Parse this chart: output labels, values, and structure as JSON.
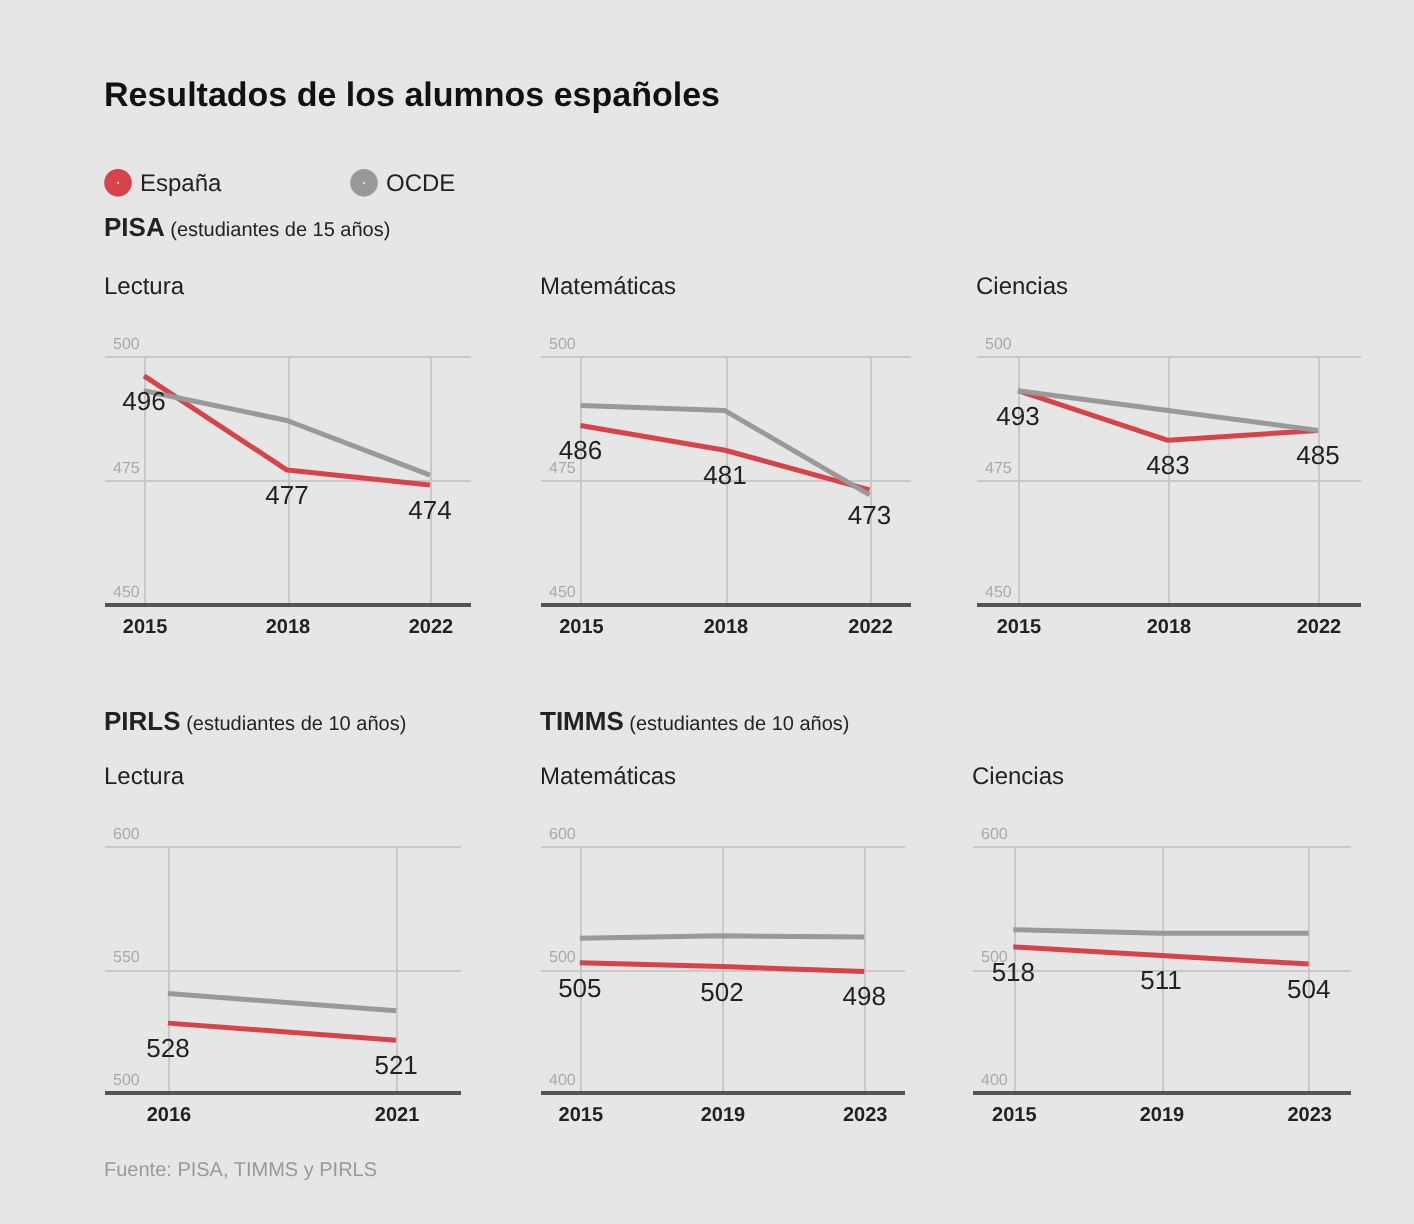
{
  "chart_data": [
    {
      "type": "other",
      "title": "Resultados de los alumnos españoles"
    },
    {
      "type": "line",
      "title": "Lectura",
      "subtitle": "PISA (estudiantes de 15 años)",
      "categories": [
        "2015",
        "2018",
        "2022"
      ],
      "ylim": [
        450,
        500
      ],
      "yticks": [
        450,
        475,
        500
      ],
      "grid": true,
      "legend": "top left",
      "series": [
        {
          "name": "España",
          "color": "#d8434b",
          "values": [
            496,
            477,
            474
          ],
          "value_labels": [
            "496",
            "477",
            "474"
          ]
        },
        {
          "name": "OCDE",
          "color": "#999999",
          "values": [
            493,
            487,
            476
          ]
        }
      ]
    },
    {
      "type": "line",
      "title": "Matemáticas",
      "categories": [
        "2015",
        "2018",
        "2022"
      ],
      "ylim": [
        450,
        500
      ],
      "yticks": [
        450,
        475,
        500
      ],
      "grid": true,
      "series": [
        {
          "color": "#d8434b",
          "values": [
            486,
            481,
            473
          ],
          "value_labels": [
            "486",
            "481",
            "473"
          ]
        },
        {
          "color": "#999999",
          "values": [
            490,
            489,
            472
          ]
        }
      ]
    },
    {
      "type": "line",
      "title": "Ciencias",
      "categories": [
        "2015",
        "2018",
        "2022"
      ],
      "ylim": [
        450,
        500
      ],
      "yticks": [
        450,
        475,
        500
      ],
      "grid": true,
      "series": [
        {
          "color": "#d8434b",
          "values": [
            493,
            483,
            485
          ],
          "value_labels": [
            "493",
            "483",
            "485"
          ]
        },
        {
          "color": "#999999",
          "values": [
            493,
            489,
            485
          ]
        }
      ]
    },
    {
      "type": "line",
      "title": "Lectura",
      "subtitle": "PIRLS (estudiantes de 10 años)",
      "categories": [
        "2016",
        "2021"
      ],
      "ylim": [
        500,
        600
      ],
      "yticks": [
        500,
        550,
        600
      ],
      "grid": true,
      "annotations": [
        "Fuente: PISA, TIMMS y PIRLS"
      ],
      "series": [
        {
          "color": "#d8434b",
          "values": [
            528,
            521
          ],
          "value_labels": [
            "528",
            "521"
          ]
        },
        {
          "color": "#999999",
          "values": [
            540,
            533
          ]
        }
      ]
    },
    {
      "type": "line",
      "title": "Matemáticas",
      "subtitle": "TIMMS (estudiantes de 10 años)",
      "categories": [
        "2015",
        "2019",
        "2023"
      ],
      "ylim": [
        400,
        600
      ],
      "yticks": [
        400,
        500,
        600
      ],
      "grid": true,
      "series": [
        {
          "color": "#d8434b",
          "values": [
            505,
            502,
            498
          ],
          "value_labels": [
            "505",
            "502",
            "498"
          ]
        },
        {
          "color": "#999999",
          "values": [
            525,
            527,
            526
          ]
        }
      ]
    },
    {
      "type": "line",
      "title": "Ciencias",
      "categories": [
        "2015",
        "2019",
        "2023"
      ],
      "ylim": [
        400,
        600
      ],
      "yticks": [
        400,
        500,
        600
      ],
      "grid": true,
      "series": [
        {
          "color": "#d8434b",
          "values": [
            518,
            511,
            504
          ],
          "value_labels": [
            "518",
            "511",
            "504"
          ]
        },
        {
          "color": "#999999",
          "values": [
            532,
            529,
            529
          ]
        }
      ]
    }
  ]
}
